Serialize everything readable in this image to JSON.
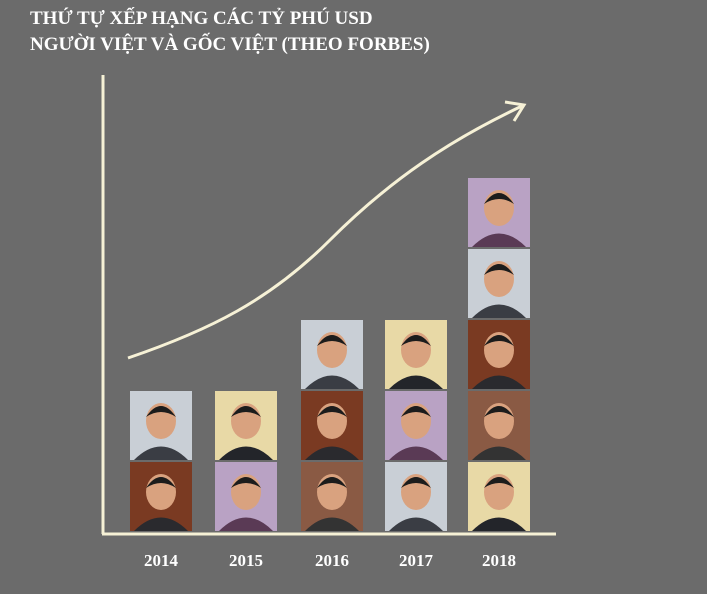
{
  "chart_data": {
    "type": "pictograph",
    "title": [
      "THỨ TỰ XẾP HẠNG CÁC TỶ PHÚ USD",
      "NGƯỜI VIỆT VÀ GỐC VIỆT (THEO FORBES)"
    ],
    "categories": [
      "2014",
      "2015",
      "2016",
      "2017",
      "2018"
    ],
    "values": [
      2,
      2,
      3,
      3,
      5
    ]
  }
}
